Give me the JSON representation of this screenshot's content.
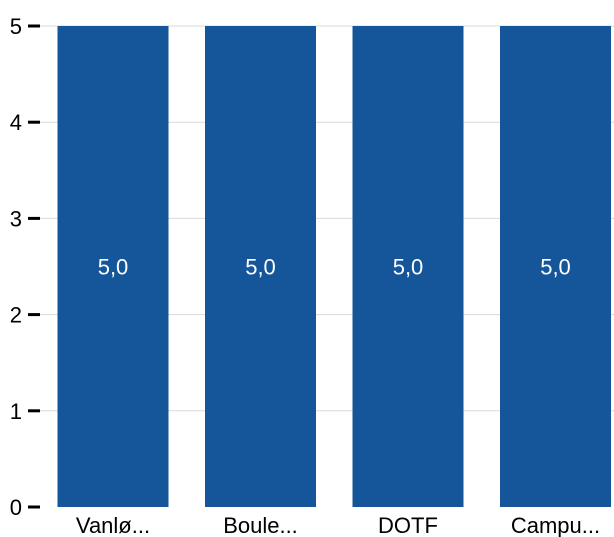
{
  "chart_data": {
    "type": "bar",
    "categories": [
      "Vanlø...",
      "Boule...",
      "DOTF",
      "Campu..."
    ],
    "values": [
      5,
      5,
      5,
      5
    ],
    "data_labels": [
      "5,0",
      "5,0",
      "5,0",
      "5,0"
    ],
    "y_ticks": [
      0,
      1,
      2,
      3,
      4,
      5
    ],
    "ylim": [
      0,
      5
    ],
    "grid": true,
    "legend": "none",
    "bar_color": "#15559a",
    "grid_color": "#d9d9d9"
  }
}
